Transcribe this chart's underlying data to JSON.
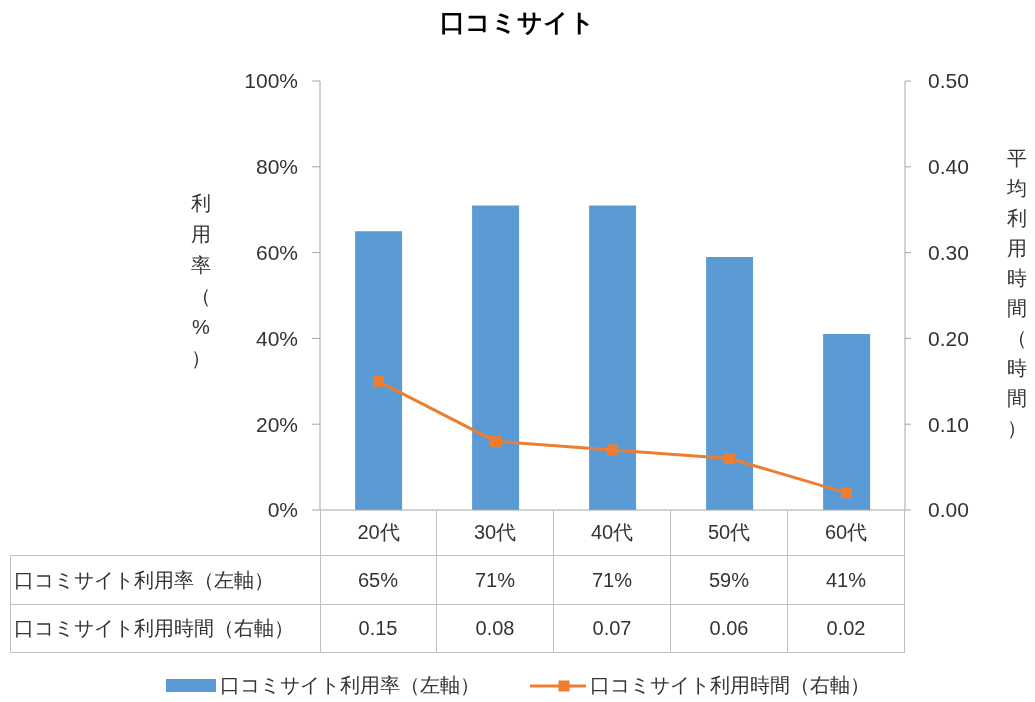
{
  "chart_data": {
    "type": "bar",
    "title": "口コミサイト",
    "ylabel": "利用率（%）",
    "y2label": "平均利用時間（時間）",
    "categories": [
      "20代",
      "30代",
      "40代",
      "50代",
      "60代"
    ],
    "series": [
      {
        "name": "口コミサイト利用率（左軸）",
        "type": "bar",
        "color": "#5b9bd5",
        "values": [
          65,
          71,
          71,
          59,
          41
        ],
        "value_labels": [
          "65%",
          "71%",
          "71%",
          "59%",
          "41%"
        ]
      },
      {
        "name": "口コミサイト利用時間（右軸）",
        "type": "line",
        "axis": "y2",
        "color": "#ed7d31",
        "marker": "square",
        "values": [
          0.15,
          0.08,
          0.07,
          0.06,
          0.02
        ],
        "value_labels": [
          "0.15",
          "0.08",
          "0.07",
          "0.06",
          "0.02"
        ]
      }
    ],
    "ylim": [
      0,
      100
    ],
    "yticks": [
      {
        "value": 0,
        "label": "0%"
      },
      {
        "value": 20,
        "label": "20%"
      },
      {
        "value": 40,
        "label": "40%"
      },
      {
        "value": 60,
        "label": "60%"
      },
      {
        "value": 80,
        "label": "80%"
      },
      {
        "value": 100,
        "label": "100%"
      }
    ],
    "y2lim": [
      0,
      0.5
    ],
    "y2ticks": [
      {
        "value": 0,
        "label": "0.00"
      },
      {
        "value": 0.1,
        "label": "0.10"
      },
      {
        "value": 0.2,
        "label": "0.20"
      },
      {
        "value": 0.3,
        "label": "0.30"
      },
      {
        "value": 0.4,
        "label": "0.40"
      },
      {
        "value": 0.5,
        "label": "0.50"
      }
    ],
    "legend": "bottom"
  }
}
